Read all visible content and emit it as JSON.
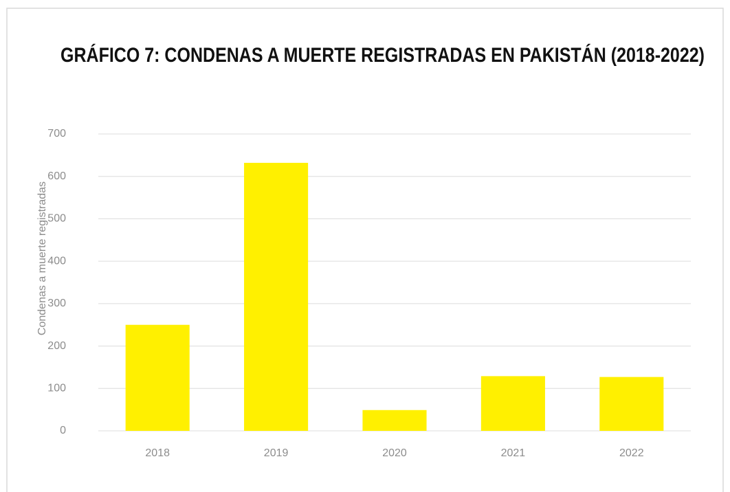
{
  "chart_data": {
    "type": "bar",
    "title": "GRÁFICO 7: CONDENAS A MUERTE REGISTRADAS EN PAKISTÁN (2018-2022)",
    "y_label": "Condenas a muerte registradas",
    "categories": [
      "2018",
      "2019",
      "2020",
      "2021",
      "2022"
    ],
    "values": [
      250,
      632,
      49,
      129,
      127
    ],
    "color": "#fff000",
    "ylim": [
      0,
      700
    ],
    "yticks": [
      0,
      100,
      200,
      300,
      400,
      500,
      600,
      700
    ],
    "grid": true
  }
}
